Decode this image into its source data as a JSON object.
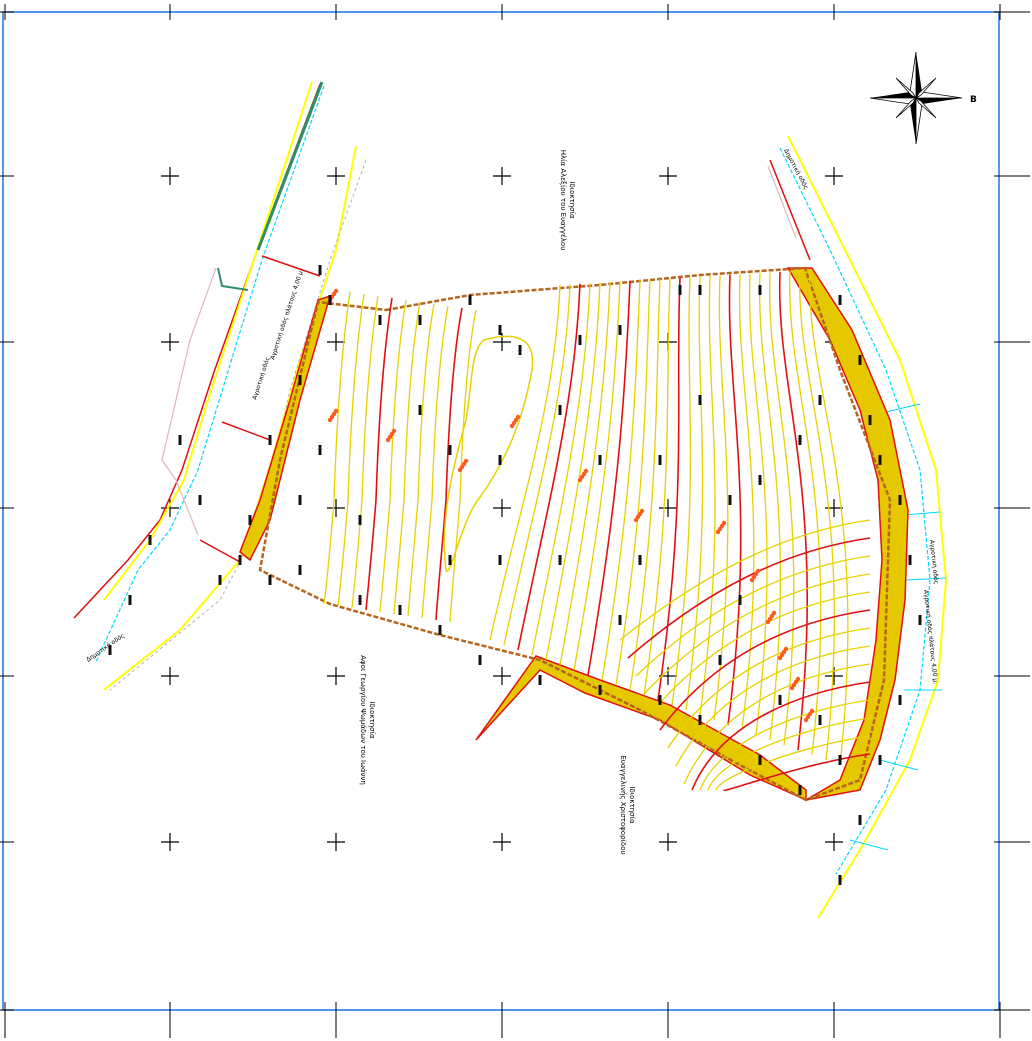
{
  "map": {
    "owner_labels": {
      "north": [
        "Ιδιοκτησία",
        "Ηλία Αλεξίου του Ευαγγέλου"
      ],
      "southwest": [
        "Ιδιοκτησία",
        "Αφοι Γεωργίου Ψωμάδων του Ιωάννη"
      ],
      "southeast": [
        "Ιδιοκτησία",
        "Ευαγγελινής Χριστοφορίδου"
      ]
    },
    "road_labels": {
      "west": "Αγροτική οδός",
      "west_sub": "Αγροτική οδός πλάτους 4,00 μ.",
      "west_top": "Δημοτική οδός",
      "east": "Αγροτική οδός",
      "east_sub": "Αγροτική οδός πλάτους 4,00 μ.",
      "east_top": "Δημοτική οδός"
    },
    "north_arrow_label": "Β",
    "colors": {
      "frame": "#1a73e8",
      "contour_minor": "#e6d200",
      "contour_major": "#e01010",
      "boundary": "#b5651d",
      "road_edge": "#ffff00",
      "road_axis": "#00d8ff",
      "road_red": "#e01010",
      "fill_slope": "#e6c800"
    }
  }
}
